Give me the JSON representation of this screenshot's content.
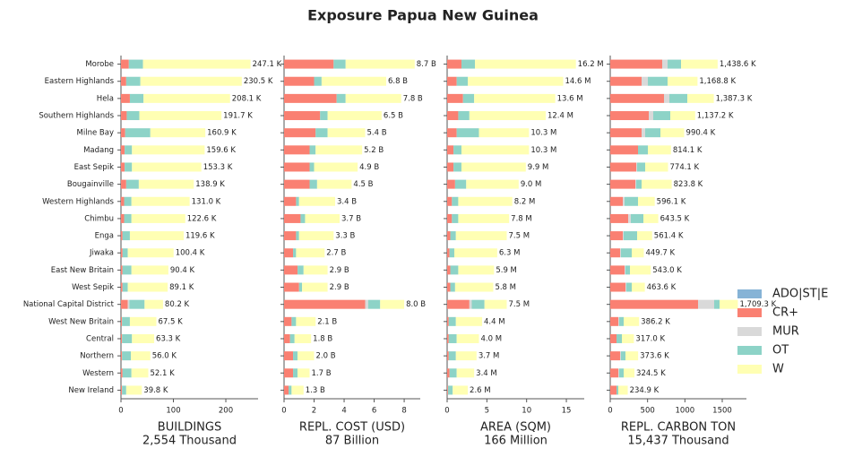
{
  "title": "Exposure Papua New Guinea",
  "chart_data": [
    {
      "type": "bar",
      "orientation": "horizontal",
      "categories": [
        "Morobe",
        "Eastern Highlands",
        "Hela",
        "Southern Highlands",
        "Milne Bay",
        "Madang",
        "East Sepik",
        "Bougainville",
        "Western Highlands",
        "Chimbu",
        "Enga",
        "Jiwaka",
        "East New Britain",
        "West Sepik",
        "National Capital District",
        "West New Britain",
        "Central",
        "Northern",
        "Western",
        "New Ireland"
      ],
      "series": [
        {
          "name": "ADO|ST|E",
          "color": "#86b3d6",
          "values": [
            0,
            0,
            0,
            0,
            0,
            0,
            0,
            0,
            0,
            0,
            0,
            0,
            0,
            0,
            0,
            0,
            0,
            0,
            0,
            0
          ]
        },
        {
          "name": "CR+",
          "color": "#fa8072",
          "values": [
            15,
            10,
            17,
            11,
            8,
            7,
            7,
            10,
            6,
            6,
            3,
            3,
            3,
            3,
            13,
            2,
            2,
            2,
            3,
            2
          ]
        },
        {
          "name": "MUR",
          "color": "#d9d9d9",
          "values": [
            0,
            0,
            0,
            0,
            0,
            0,
            0,
            0,
            0,
            0,
            0,
            0,
            0,
            0,
            3,
            0,
            0,
            0,
            0,
            0
          ]
        },
        {
          "name": "OT",
          "color": "#8dd3c7",
          "values": [
            27,
            27,
            26,
            24,
            48,
            14,
            14,
            24,
            14,
            14,
            14,
            10,
            17,
            10,
            29,
            15,
            19,
            17,
            17,
            8
          ]
        },
        {
          "name": "W",
          "color": "#ffffb3",
          "values": [
            205.1,
            193.5,
            165.1,
            156.7,
            104.9,
            138.6,
            132.3,
            104.9,
            111.0,
            102.6,
            102.6,
            87.4,
            70.4,
            76.1,
            35.2,
            50.5,
            42.3,
            37.0,
            32.1,
            29.8
          ]
        }
      ],
      "totals": [
        247.1,
        230.5,
        208.1,
        191.7,
        160.9,
        159.6,
        153.3,
        138.9,
        131.0,
        122.6,
        119.6,
        100.4,
        90.4,
        89.1,
        80.2,
        67.5,
        63.3,
        56.0,
        52.1,
        39.8
      ],
      "total_labels": [
        "247.1 K",
        "230.5 K",
        "208.1 K",
        "191.7 K",
        "160.9 K",
        "159.6 K",
        "153.3 K",
        "138.9 K",
        "131.0 K",
        "122.6 K",
        "119.6 K",
        "100.4 K",
        "90.4 K",
        "89.1 K",
        "80.2 K",
        "67.5 K",
        "63.3 K",
        "56.0 K",
        "52.1 K",
        "39.8 K"
      ],
      "xlim": [
        0,
        261.5
      ],
      "xticks": [
        0,
        100,
        200
      ],
      "xlabel": [
        "BUILDINGS",
        "2,554 Thousand"
      ]
    },
    {
      "type": "bar",
      "orientation": "horizontal",
      "series": [
        {
          "values": [
            0,
            0,
            0,
            0,
            0,
            0,
            0,
            0,
            0,
            0,
            0,
            0,
            0,
            0,
            0,
            0,
            0,
            0,
            0,
            0
          ]
        },
        {
          "values": [
            3.3,
            2.0,
            3.5,
            2.4,
            2.1,
            1.7,
            1.7,
            1.7,
            0.8,
            1.1,
            0.8,
            0.6,
            0.9,
            1.0,
            5.4,
            0.5,
            0.4,
            0.6,
            0.6,
            0.3
          ]
        },
        {
          "values": [
            0,
            0,
            0,
            0,
            0,
            0,
            0,
            0,
            0,
            0,
            0,
            0,
            0,
            0,
            0.2,
            0,
            0,
            0,
            0,
            0
          ]
        },
        {
          "values": [
            0.8,
            0.5,
            0.6,
            0.5,
            0.8,
            0.4,
            0.3,
            0.5,
            0.2,
            0.3,
            0.2,
            0.2,
            0.4,
            0.2,
            0.8,
            0.3,
            0.3,
            0.3,
            0.3,
            0.2
          ]
        },
        {
          "values": [
            4.6,
            4.3,
            3.7,
            3.6,
            2.5,
            3.1,
            2.9,
            2.3,
            2.4,
            2.3,
            2.3,
            1.9,
            1.6,
            1.7,
            1.6,
            1.3,
            1.1,
            1.1,
            0.8,
            0.8
          ]
        }
      ],
      "totals": [
        8.7,
        6.8,
        7.8,
        6.5,
        5.4,
        5.2,
        4.9,
        4.5,
        3.4,
        3.7,
        3.3,
        2.7,
        2.9,
        2.9,
        8.0,
        2.1,
        1.8,
        2.0,
        1.7,
        1.3
      ],
      "total_labels": [
        "8.7 B",
        "6.8 B",
        "7.8 B",
        "6.5 B",
        "5.4 B",
        "5.2 B",
        "4.9 B",
        "4.5 B",
        "3.4 B",
        "3.7 B",
        "3.3 B",
        "2.7 B",
        "2.9 B",
        "2.9 B",
        "8.0 B",
        "2.1 B",
        "1.8 B",
        "2.0 B",
        "1.7 B",
        "1.3 B"
      ],
      "xlim": [
        0,
        9.07
      ],
      "xticks": [
        0,
        2,
        4,
        6,
        8
      ],
      "xlabel": [
        "REPL. COST (USD)",
        "87 Billion"
      ]
    },
    {
      "type": "bar",
      "orientation": "horizontal",
      "series": [
        {
          "values": [
            0,
            0,
            0,
            0,
            0,
            0,
            0,
            0,
            0,
            0,
            0,
            0,
            0,
            0,
            0,
            0,
            0,
            0,
            0,
            0
          ]
        },
        {
          "values": [
            1.8,
            1.2,
            2.0,
            1.4,
            1.2,
            0.8,
            0.8,
            1.0,
            0.6,
            0.6,
            0.4,
            0.3,
            0.4,
            0.4,
            2.8,
            0.2,
            0.2,
            0.2,
            0.3,
            0.1
          ]
        },
        {
          "values": [
            0,
            0,
            0,
            0,
            0,
            0,
            0,
            0,
            0,
            0,
            0,
            0,
            0,
            0,
            0.3,
            0,
            0,
            0,
            0,
            0
          ]
        },
        {
          "values": [
            1.7,
            1.4,
            1.4,
            1.4,
            2.8,
            1.0,
            1.0,
            1.4,
            0.8,
            0.8,
            0.7,
            0.6,
            1.0,
            0.6,
            1.6,
            0.9,
            1.0,
            0.9,
            0.9,
            0.6
          ]
        },
        {
          "values": [
            12.7,
            12.0,
            10.2,
            9.6,
            6.3,
            8.5,
            8.1,
            6.6,
            6.8,
            6.4,
            6.4,
            5.4,
            4.5,
            4.8,
            2.8,
            3.3,
            2.8,
            2.6,
            2.2,
            1.9
          ]
        }
      ],
      "totals": [
        16.2,
        14.6,
        13.6,
        12.4,
        10.3,
        10.3,
        9.9,
        9.0,
        8.2,
        7.8,
        7.5,
        6.3,
        5.9,
        5.8,
        7.5,
        4.4,
        4.0,
        3.7,
        3.4,
        2.6
      ],
      "total_labels": [
        "16.2 M",
        "14.6 M",
        "13.6 M",
        "12.4 M",
        "10.3 M",
        "10.3 M",
        "9.9 M",
        "9.0 M",
        "8.2 M",
        "7.8 M",
        "7.5 M",
        "6.3 M",
        "5.9 M",
        "5.8 M",
        "7.5 M",
        "4.4 M",
        "4.0 M",
        "3.7 M",
        "3.4 M",
        "2.6 M"
      ],
      "xlim": [
        0,
        17.25
      ],
      "xticks": [
        0,
        5,
        10,
        15
      ],
      "xlabel": [
        "AREA (SQM)",
        "166 Million"
      ]
    },
    {
      "type": "bar",
      "orientation": "horizontal",
      "series": [
        {
          "values": [
            0,
            0,
            0,
            0,
            0,
            0,
            0,
            0,
            0,
            0,
            0,
            0,
            0,
            0,
            0,
            0,
            0,
            0,
            0,
            0
          ]
        },
        {
          "values": [
            696,
            420,
            720,
            516,
            420,
            372,
            348,
            336,
            168,
            240,
            168,
            132,
            192,
            204,
            1176,
            108,
            84,
            132,
            108,
            84
          ]
        },
        {
          "values": [
            72,
            84,
            72,
            60,
            48,
            0,
            12,
            12,
            24,
            36,
            12,
            12,
            12,
            12,
            216,
            12,
            0,
            12,
            12,
            0
          ]
        },
        {
          "values": [
            180,
            264,
            240,
            228,
            204,
            132,
            108,
            72,
            180,
            168,
            180,
            144,
            60,
            72,
            72,
            60,
            72,
            60,
            60,
            24
          ]
        },
        {
          "values": [
            490.6,
            400.8,
            355.3,
            333.2,
            318.4,
            310.1,
            306.1,
            403.8,
            224.1,
            199.5,
            201.4,
            161.7,
            279.0,
            175.6,
            245.3,
            206.2,
            161.0,
            169.6,
            144.5,
            126.9
          ]
        }
      ],
      "totals": [
        1438.6,
        1168.8,
        1387.3,
        1137.2,
        990.4,
        814.1,
        774.1,
        823.8,
        596.1,
        643.5,
        561.4,
        449.7,
        543.0,
        463.6,
        1709.3,
        386.2,
        317.0,
        373.6,
        324.5,
        234.9
      ],
      "total_labels": [
        "1,438.6 K",
        "1,168.8 K",
        "1,387.3 K",
        "1,137.2 K",
        "990.4 K",
        "814.1 K",
        "774.1 K",
        "823.8 K",
        "596.1 K",
        "643.5 K",
        "561.4 K",
        "449.7 K",
        "543.0 K",
        "463.6 K",
        "1,709.3 K",
        "386.2 K",
        "317.0 K",
        "373.6 K",
        "324.5 K",
        "234.9 K"
      ],
      "xlim": [
        0,
        1824
      ],
      "xticks": [
        0,
        500,
        1000,
        1500
      ],
      "xlabel": [
        "REPL. CARBON TON",
        "15,437 Thousand"
      ]
    }
  ]
}
